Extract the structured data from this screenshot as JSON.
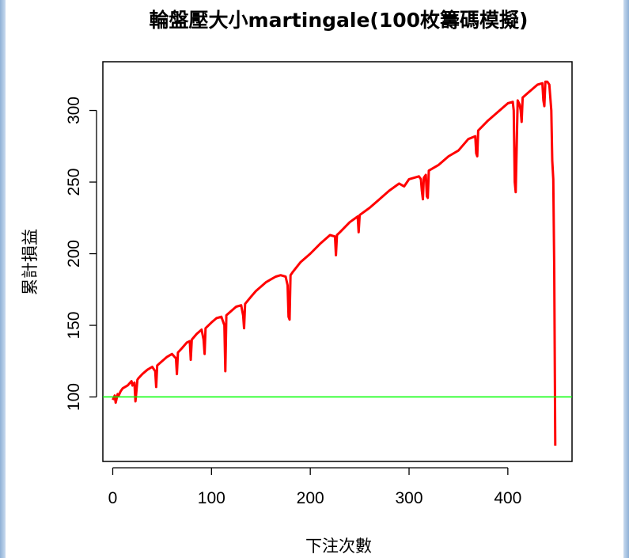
{
  "chart_data": {
    "type": "line",
    "title": "輪盤壓大小martingale(100枚籌碼模擬)",
    "xlabel": "下注次數",
    "ylabel": "累計損益",
    "xlim": [
      -10,
      465
    ],
    "ylim": [
      55,
      334
    ],
    "x_ticks": [
      0,
      100,
      200,
      300,
      400
    ],
    "y_ticks": [
      100,
      150,
      200,
      250,
      300
    ],
    "grid": false,
    "legend": "none",
    "series": [
      {
        "color": "#ff0000",
        "x": [
          0,
          2,
          3,
          5,
          6,
          8,
          10,
          15,
          19,
          20,
          22,
          23,
          24,
          25,
          26,
          30,
          35,
          40,
          43,
          44,
          45,
          50,
          55,
          60,
          64,
          65,
          66,
          70,
          75,
          78,
          79,
          80,
          85,
          90,
          92,
          93,
          94,
          100,
          105,
          110,
          113,
          114,
          115,
          120,
          125,
          130,
          132,
          133,
          134,
          140,
          145,
          150,
          155,
          160,
          165,
          170,
          175,
          177,
          178,
          179,
          180,
          182,
          190,
          200,
          210,
          220,
          225,
          226,
          227,
          230,
          240,
          248,
          249,
          250,
          260,
          270,
          280,
          290,
          295,
          300,
          310,
          312,
          313,
          314,
          315,
          317,
          318,
          319,
          320,
          330,
          340,
          350,
          360,
          367,
          368,
          369,
          370,
          380,
          390,
          400,
          405,
          406,
          407,
          408,
          410,
          412,
          413,
          414,
          415,
          420,
          430,
          435,
          436,
          437,
          438,
          440,
          442,
          444,
          445,
          446,
          447,
          448
        ],
        "y": [
          98,
          101,
          96,
          102,
          101,
          104,
          106,
          108,
          111,
          108,
          110,
          97,
          104,
          112,
          113,
          116,
          119,
          121,
          118,
          107,
          122,
          125,
          128,
          130,
          127,
          116,
          131,
          134,
          138,
          139,
          126,
          140,
          144,
          147,
          140,
          130,
          148,
          152,
          155,
          156,
          150,
          118,
          157,
          160,
          163,
          164,
          157,
          148,
          165,
          170,
          174,
          177,
          180,
          182,
          184,
          185,
          184,
          178,
          156,
          154,
          185,
          187,
          194,
          200,
          207,
          213,
          212,
          199,
          213,
          215,
          222,
          226,
          215,
          227,
          232,
          238,
          244,
          249,
          247,
          252,
          254,
          252,
          244,
          238,
          253,
          255,
          240,
          239,
          258,
          262,
          268,
          272,
          280,
          282,
          270,
          268,
          286,
          293,
          299,
          305,
          306,
          300,
          250,
          243,
          307,
          304,
          300,
          292,
          309,
          312,
          318,
          319,
          307,
          303,
          320,
          320,
          318,
          300,
          265,
          252,
          190,
          66
        ]
      },
      {
        "color": "#00ff00",
        "type": "hline",
        "y": 100
      }
    ]
  }
}
